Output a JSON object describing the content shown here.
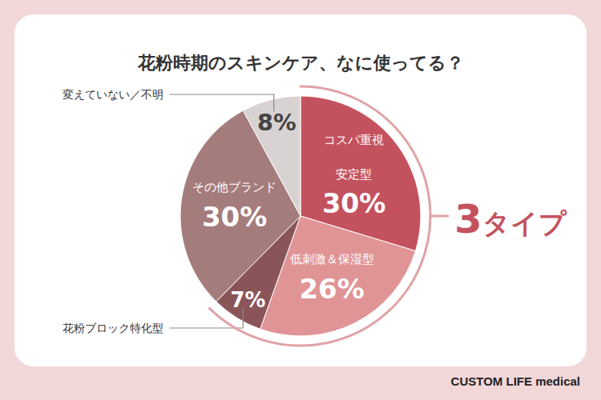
{
  "chart_data": {
    "type": "pie",
    "title": "花粉時期のスキンケア、なに使ってる？",
    "categories": [
      "コスパ重視安定型",
      "低刺激＆保湿型",
      "花粉ブロック特化型",
      "その他ブランド",
      "変えていない／不明"
    ],
    "values": [
      30,
      26,
      7,
      30,
      8
    ],
    "value_labels": [
      "30%",
      "26%",
      "7%",
      "30%",
      "8%"
    ],
    "colors": [
      "#c4525e",
      "#e09496",
      "#8a5558",
      "#a57c7c",
      "#d9d2d2"
    ],
    "data_labels": true,
    "annotations": [
      {
        "text": "3タイプ"
      }
    ]
  },
  "footer": "CUSTOM LIFE medical"
}
